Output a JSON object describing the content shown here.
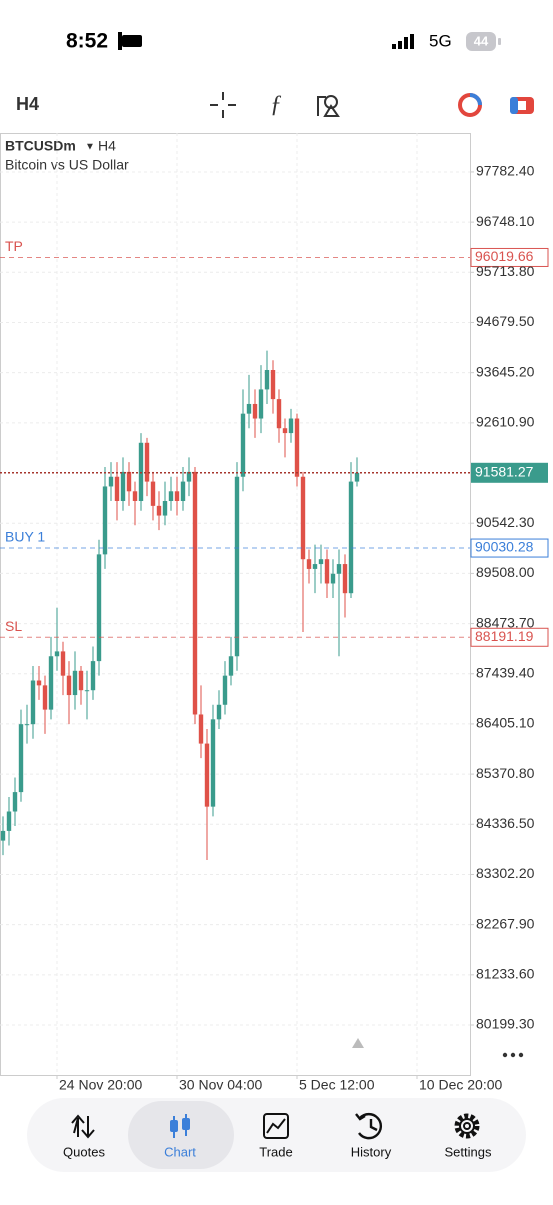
{
  "status_bar": {
    "time": "8:52",
    "network": "5G",
    "battery": "44"
  },
  "toolbar": {
    "timeframe": "H4"
  },
  "chart_data": {
    "type": "candlestick",
    "symbol": "BTCUSDm",
    "timeframe": "H4",
    "description": "Bitcoin vs US Dollar",
    "categories": [
      null,
      null,
      null,
      null,
      null,
      null,
      null,
      null,
      null,
      "24 Nov 20:00",
      null,
      null,
      null,
      null,
      null,
      null,
      null,
      null,
      null,
      null,
      null,
      null,
      null,
      null,
      null,
      null,
      null,
      null,
      null,
      "30 Nov 04:00",
      null,
      null,
      null,
      null,
      null,
      null,
      null,
      null,
      null,
      null,
      null,
      null,
      null,
      null,
      null,
      null,
      null,
      null,
      null,
      "5 Dec 12:00",
      null,
      null,
      null,
      null,
      null,
      null,
      null,
      null,
      null,
      null,
      null,
      null,
      null,
      null,
      null,
      null,
      null,
      null,
      null,
      "10 Dec 20:00",
      null,
      null,
      null,
      null,
      null,
      null,
      null,
      null
    ],
    "open": [
      84000,
      84200,
      84600,
      85000,
      86400,
      86400,
      87300,
      87200,
      86700,
      87800,
      87900,
      87400,
      87000,
      87500,
      87100,
      87100,
      87700,
      89900,
      91300,
      91500,
      91000,
      91600,
      91200,
      91000,
      92200,
      91400,
      90900,
      90700,
      91000,
      91200,
      91000,
      91400,
      91600,
      86600,
      86000,
      84700,
      86500,
      86800,
      87400,
      87800,
      91500,
      92800,
      93000,
      92700,
      93300,
      93700,
      93100,
      92500,
      92400,
      92700,
      91500,
      89800,
      89600,
      89700,
      89800,
      89300,
      89500,
      89700,
      89100,
      91400,
      null,
      null,
      null,
      null,
      null,
      null,
      null,
      null,
      null,
      null,
      null,
      null,
      null,
      null,
      null,
      null,
      null,
      null
    ],
    "high": [
      84500,
      84900,
      85300,
      86700,
      86800,
      87600,
      87600,
      87400,
      88200,
      88800,
      88100,
      87700,
      87900,
      87600,
      87500,
      88000,
      90200,
      91700,
      91800,
      91800,
      91900,
      91800,
      91400,
      92400,
      92300,
      91600,
      91200,
      91400,
      91500,
      91500,
      91700,
      91900,
      91700,
      87200,
      86300,
      86800,
      87100,
      87700,
      88200,
      91800,
      93300,
      93600,
      93300,
      93800,
      94100,
      93900,
      93300,
      92700,
      92900,
      92800,
      91600,
      90000,
      90100,
      90100,
      90000,
      89800,
      90000,
      89900,
      91800,
      91900,
      null,
      null,
      null,
      null,
      null,
      null,
      null,
      null,
      null,
      null,
      null,
      null,
      null,
      null,
      null,
      null,
      null,
      null
    ],
    "low": [
      83700,
      83900,
      84300,
      84800,
      86000,
      86100,
      86900,
      86200,
      86500,
      87500,
      87000,
      86400,
      86700,
      86800,
      86500,
      86900,
      87400,
      89600,
      91000,
      90600,
      90800,
      90900,
      90500,
      90800,
      91100,
      90600,
      90400,
      90500,
      90800,
      90700,
      90800,
      91100,
      86400,
      85700,
      83600,
      84500,
      86300,
      86600,
      87200,
      87500,
      91200,
      92500,
      92300,
      92400,
      93000,
      92800,
      92200,
      91900,
      92200,
      91300,
      88300,
      89300,
      89100,
      89300,
      89000,
      89000,
      87800,
      88600,
      89000,
      91300,
      null,
      null,
      null,
      null,
      null,
      null,
      null,
      null,
      null,
      null,
      null,
      null,
      null,
      null,
      null,
      null,
      null,
      null
    ],
    "close": [
      84200,
      84600,
      85000,
      86400,
      86400,
      87300,
      87200,
      86700,
      87800,
      87900,
      87400,
      87000,
      87500,
      87100,
      87100,
      87700,
      89900,
      91300,
      91500,
      91000,
      91600,
      91200,
      91000,
      92200,
      91400,
      90900,
      90700,
      91000,
      91200,
      91000,
      91400,
      91600,
      86600,
      86000,
      84700,
      86500,
      86800,
      87400,
      87800,
      91500,
      92800,
      93000,
      92700,
      93300,
      93700,
      93100,
      92500,
      92400,
      92700,
      91500,
      89800,
      89600,
      89700,
      89800,
      89300,
      89500,
      89700,
      89100,
      91400,
      91581.27,
      null,
      null,
      null,
      null,
      null,
      null,
      null,
      null,
      null,
      null,
      null,
      null,
      null,
      null,
      null,
      null,
      null,
      null
    ],
    "up_color": "#3a9b8c",
    "down_color": "#df5148",
    "ylim": [
      79169,
      98585
    ],
    "yticks": [
      {
        "value": 97782.4,
        "label": "97782.40"
      },
      {
        "value": 96748.1,
        "label": "96748.10"
      },
      {
        "value": 95713.8,
        "label": "95713.80"
      },
      {
        "value": 94679.5,
        "label": "94679.50"
      },
      {
        "value": 93645.2,
        "label": "93645.20"
      },
      {
        "value": 92610.9,
        "label": "92610.90"
      },
      {
        "value": 90542.3,
        "label": "90542.30"
      },
      {
        "value": 89508,
        "label": "89508.00"
      },
      {
        "value": 88473.7,
        "label": "88473.70"
      },
      {
        "value": 87439.4,
        "label": "87439.40"
      },
      {
        "value": 86405.1,
        "label": "86405.10"
      },
      {
        "value": 85370.8,
        "label": "85370.80"
      },
      {
        "value": 84336.5,
        "label": "84336.50"
      },
      {
        "value": 83302.2,
        "label": "83302.20"
      },
      {
        "value": 82267.9,
        "label": "82267.90"
      },
      {
        "value": 81233.6,
        "label": "81233.60"
      },
      {
        "value": 80199.3,
        "label": "80199.30"
      }
    ],
    "grid": true,
    "levels": [
      {
        "label": "TP",
        "value": 96019.66,
        "color": "#d9534f"
      },
      {
        "label": "BUY 1",
        "value": 90030.28,
        "color": "#3b7fd9"
      },
      {
        "label": "SL",
        "value": 88191.19,
        "color": "#d9534f"
      }
    ],
    "current_price": {
      "value": 91581.27,
      "color": "#a6362e"
    }
  },
  "nav": {
    "items": [
      "Quotes",
      "Chart",
      "Trade",
      "History",
      "Settings"
    ]
  }
}
